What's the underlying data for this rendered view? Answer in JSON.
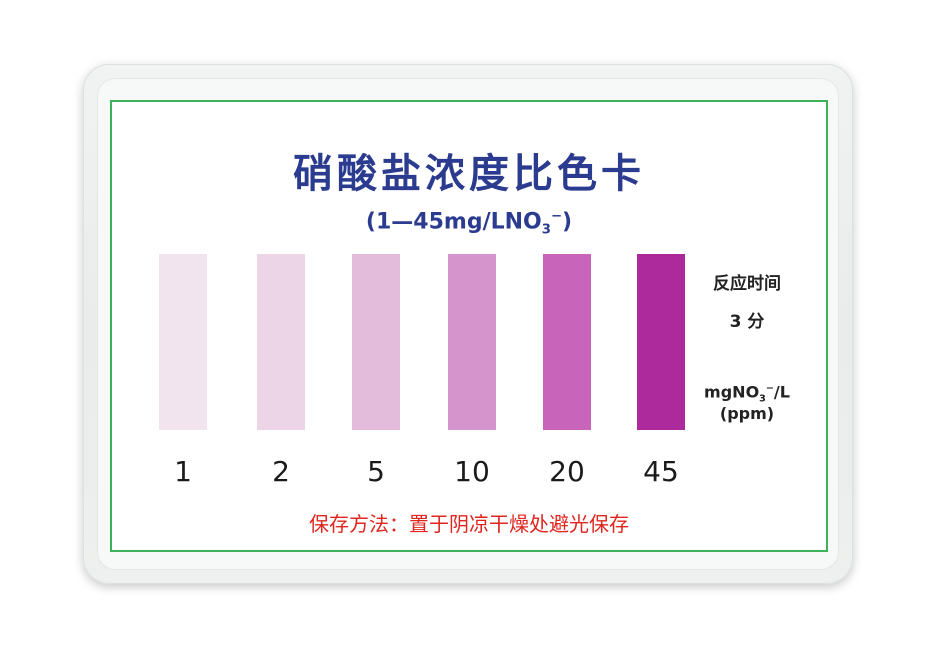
{
  "card": {
    "title": "硝酸盐浓度比色卡",
    "subtitle_main": "(1—45mg/LNO",
    "subtitle_sub": "3",
    "subtitle_sup": "−",
    "subtitle_end": ")",
    "reaction_label": "反应时间",
    "reaction_time": "3 分",
    "unit_main": "mgNO",
    "unit_sub": "3",
    "unit_sup": "−",
    "unit_end": "/L",
    "unit_ppm": "(ppm)",
    "storage_note": "保存方法：置于阴凉干燥处避光保存"
  },
  "swatches": [
    {
      "value": "1",
      "color": "#f2e4ef"
    },
    {
      "value": "2",
      "color": "#ecd5e7"
    },
    {
      "value": "5",
      "color": "#e3bcdb"
    },
    {
      "value": "10",
      "color": "#d694cc"
    },
    {
      "value": "20",
      "color": "#c964bb"
    },
    {
      "value": "45",
      "color": "#ac2a9b"
    }
  ],
  "colors": {
    "title": "#2b3b8f",
    "border": "#3fb15a",
    "storage": "#e0261f"
  }
}
